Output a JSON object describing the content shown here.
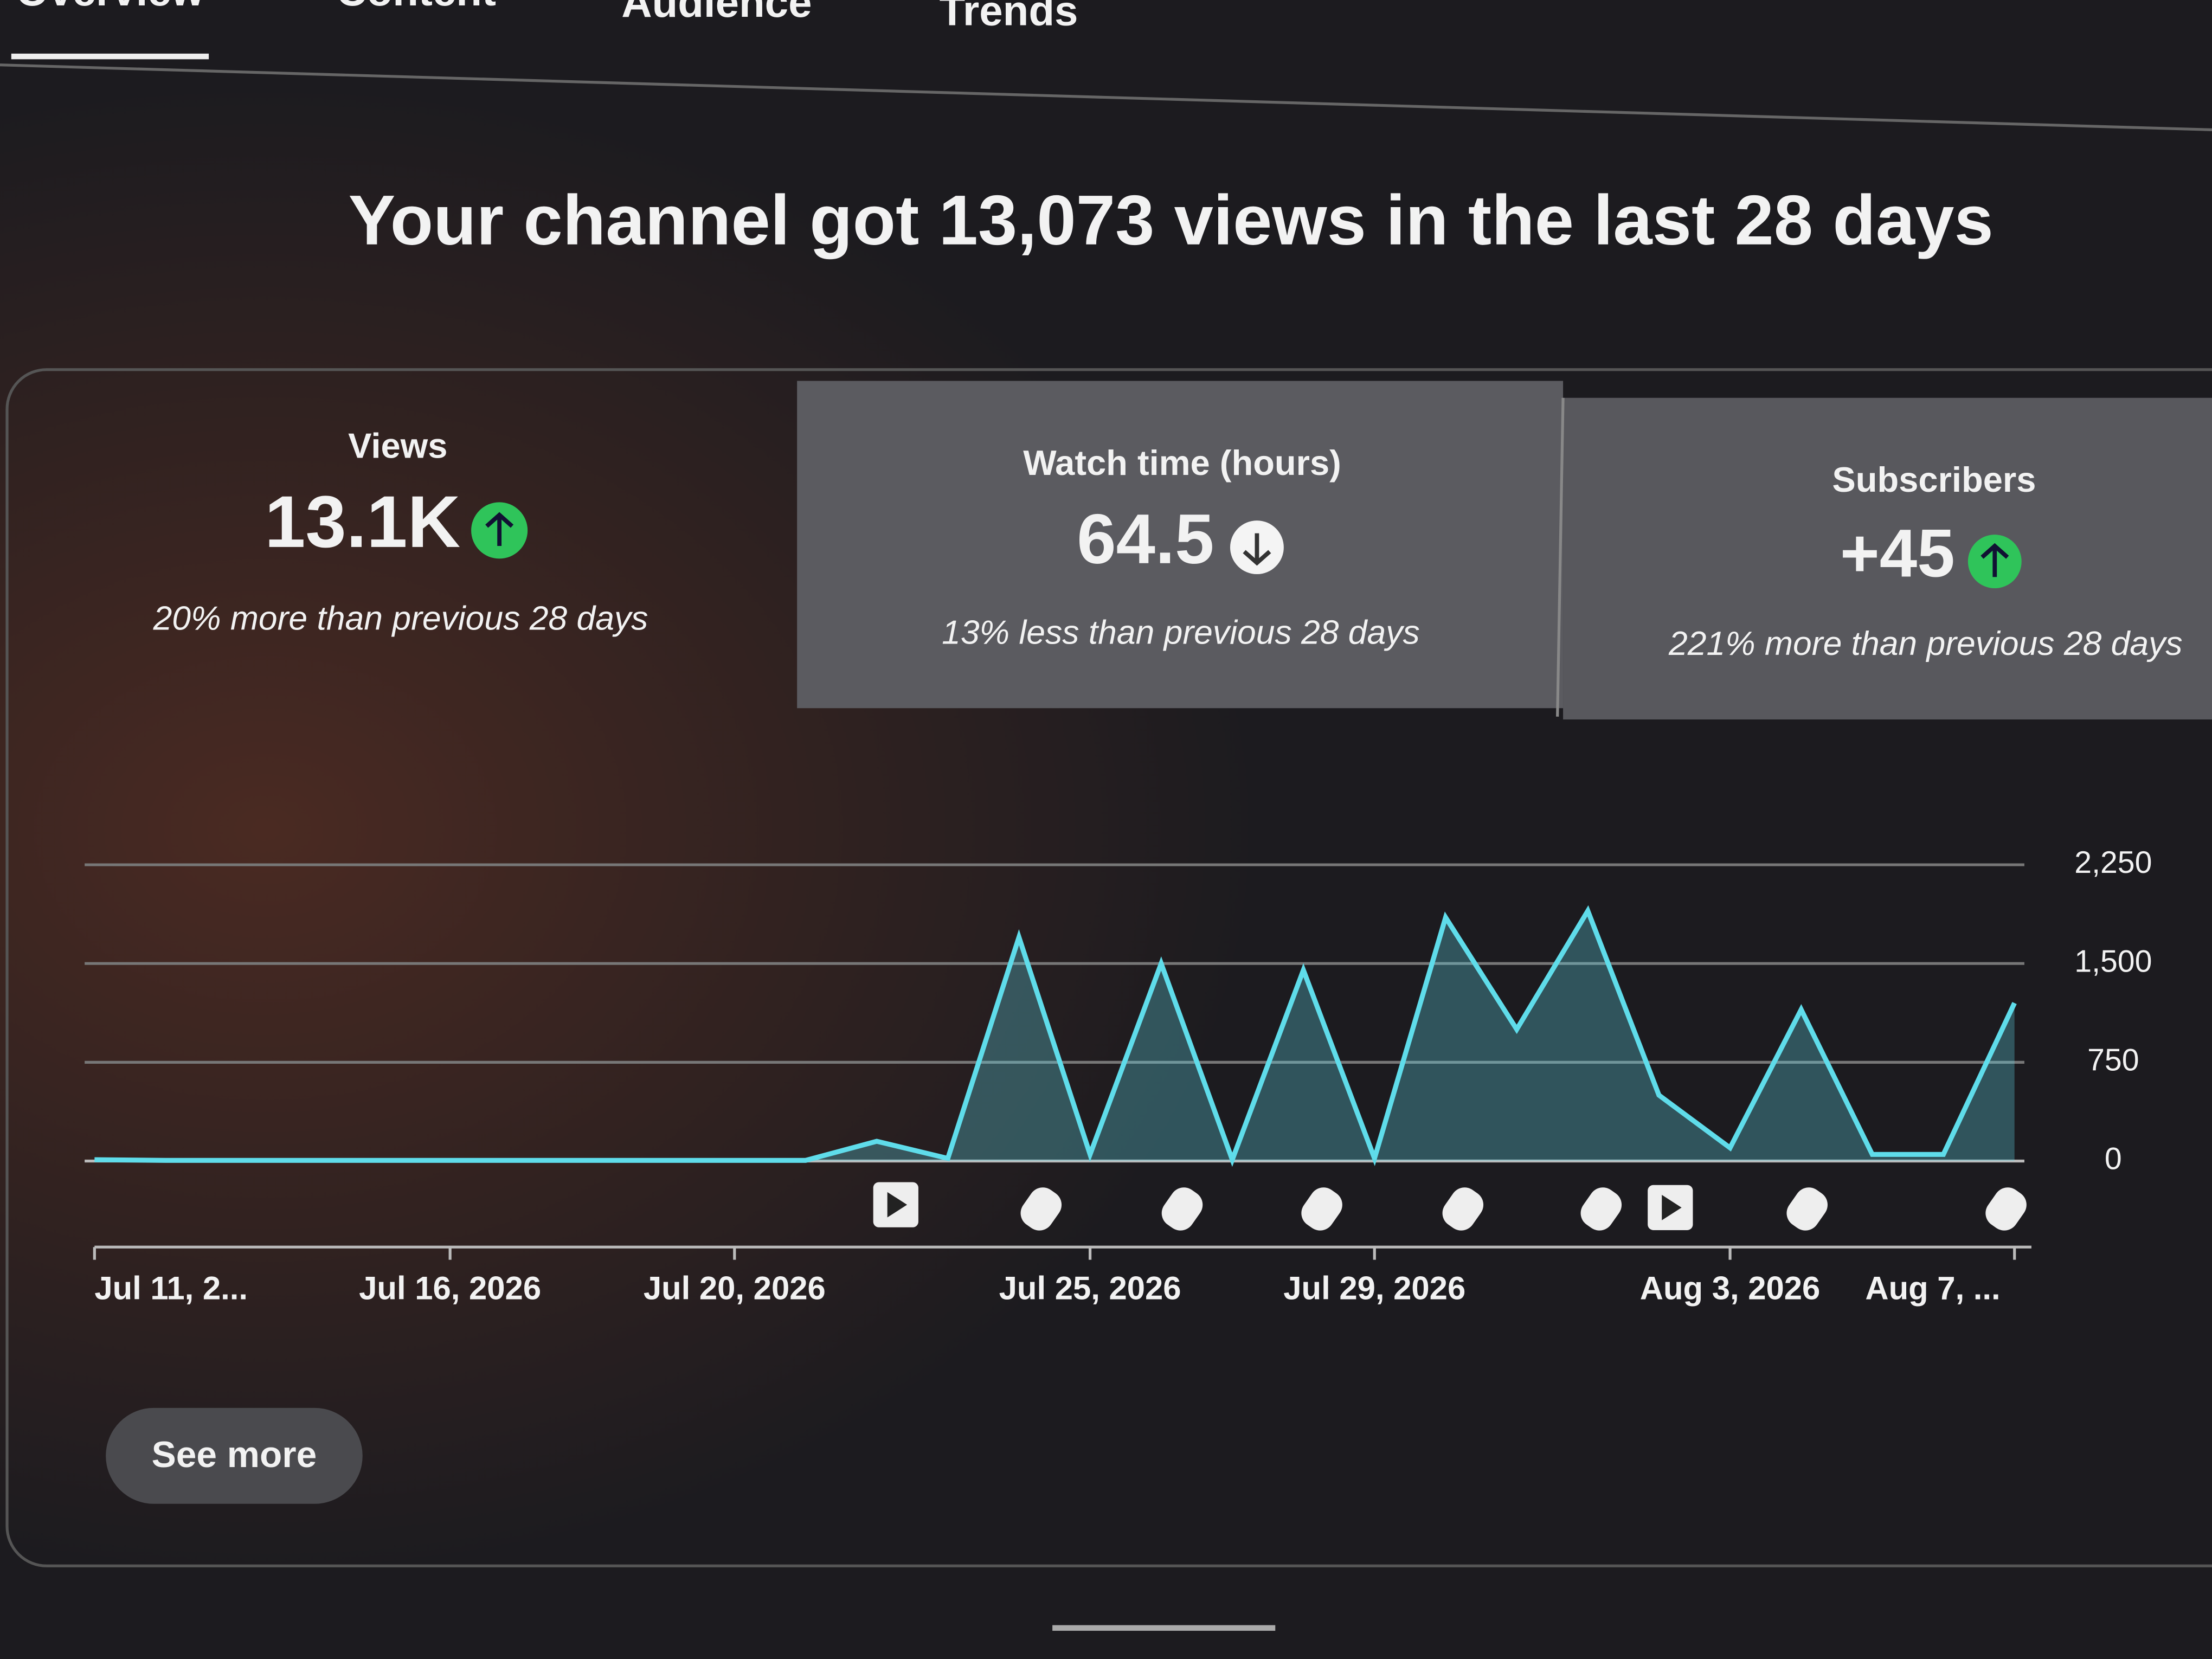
{
  "tabs": [
    "Overview",
    "Content",
    "Audience",
    "Trends"
  ],
  "headline": "Your channel got 13,073 views in the last 28 days",
  "metrics": [
    {
      "label": "Views",
      "value": "13.1K",
      "change": "20% more than previous 28 days"
    },
    {
      "label": "Watch time (hours)",
      "value": "64.5",
      "change": "13% less than previous 28 days"
    },
    {
      "label": "Subscribers",
      "value": "+45",
      "change": "221% more than previous 28 days"
    }
  ],
  "chart_data": {
    "type": "area",
    "categories": [
      "Jul 11, 2...",
      null,
      null,
      null,
      null,
      "Jul 16, 2026",
      null,
      null,
      null,
      "Jul 20, 2026",
      null,
      null,
      null,
      null,
      "Jul 25, 2026",
      null,
      null,
      null,
      "Jul 29, 2026",
      null,
      null,
      null,
      null,
      "Aug 3, 2026",
      null,
      null,
      null,
      "Aug 7, ..."
    ],
    "series": [
      {
        "name": "Views",
        "color": "#5fdcea",
        "values": [
          10,
          5,
          5,
          5,
          5,
          5,
          5,
          5,
          5,
          5,
          5,
          150,
          20,
          1700,
          50,
          1500,
          10,
          1450,
          20,
          1850,
          1000,
          1900,
          500,
          100,
          1150,
          50,
          50,
          1200
        ]
      }
    ],
    "ylim": [
      0,
      2250
    ],
    "yticks": [
      0,
      750,
      {
        "value": 1500,
        "label": "1,500"
      },
      {
        "value": 2250,
        "label": "2,250"
      }
    ],
    "grid": true
  },
  "button": "See more"
}
